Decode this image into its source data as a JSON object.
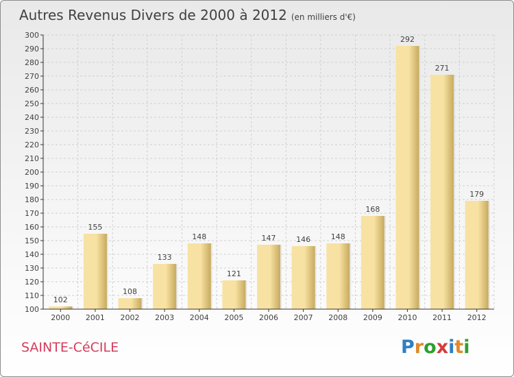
{
  "title": "Autres Revenus Divers de 2000 à 2012",
  "title_unit": "(en milliers d'€)",
  "commune": "SAINTE-CéCILE",
  "logo": {
    "letters": [
      "P",
      "r",
      "o",
      "x",
      "i",
      "t",
      "i"
    ],
    "colors": [
      "#2d7fc4",
      "#e08a2a",
      "#2da02d",
      "#d83a3a",
      "#2d7fc4",
      "#e08a2a",
      "#2da02d"
    ]
  },
  "colors": {
    "bar_light": "#f8e2a3",
    "bar_dark": "#c7aa5e",
    "text": "#404040",
    "axis": "#333333",
    "grid": "#cfcfcf"
  },
  "chart_data": {
    "type": "bar",
    "categories": [
      "2000",
      "2001",
      "2002",
      "2003",
      "2004",
      "2005",
      "2006",
      "2007",
      "2008",
      "2009",
      "2010",
      "2011",
      "2012"
    ],
    "values": [
      102,
      155,
      108,
      133,
      148,
      121,
      147,
      146,
      148,
      168,
      292,
      271,
      179
    ],
    "ylim": [
      100,
      300
    ],
    "yticks": [
      100,
      110,
      120,
      130,
      140,
      150,
      160,
      170,
      180,
      190,
      200,
      210,
      220,
      230,
      240,
      250,
      260,
      270,
      280,
      290,
      300
    ],
    "grid": true,
    "data_labels": true
  }
}
